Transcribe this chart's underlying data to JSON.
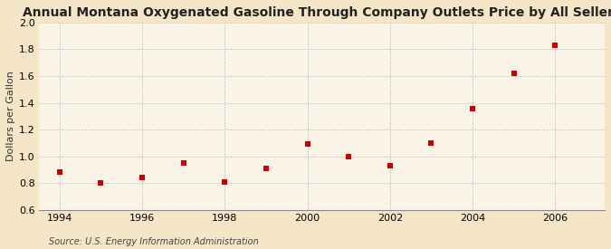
{
  "title": "Annual Montana Oxygenated Gasoline Through Company Outlets Price by All Sellers",
  "ylabel": "Dollars per Gallon",
  "source": "Source: U.S. Energy Information Administration",
  "fig_bg_color": "#f5e6c8",
  "plot_bg_color": "#faf4e8",
  "marker_color": "#cc0000",
  "marker": "s",
  "marker_size": 4,
  "xlim": [
    1993.5,
    2007.2
  ],
  "ylim": [
    0.6,
    2.0
  ],
  "xticks": [
    1994,
    1996,
    1998,
    2000,
    2002,
    2004,
    2006
  ],
  "yticks": [
    0.6,
    0.8,
    1.0,
    1.2,
    1.4,
    1.6,
    1.8,
    2.0
  ],
  "x": [
    1994,
    1995,
    1996,
    1997,
    1998,
    1999,
    2000,
    2001,
    2002,
    2003,
    2004,
    2005,
    2006
  ],
  "y": [
    0.88,
    0.8,
    0.84,
    0.95,
    0.81,
    0.91,
    1.09,
    1.0,
    0.93,
    1.1,
    1.36,
    1.62,
    1.83
  ],
  "title_fontsize": 10,
  "tick_fontsize": 8,
  "ylabel_fontsize": 8,
  "source_fontsize": 7
}
